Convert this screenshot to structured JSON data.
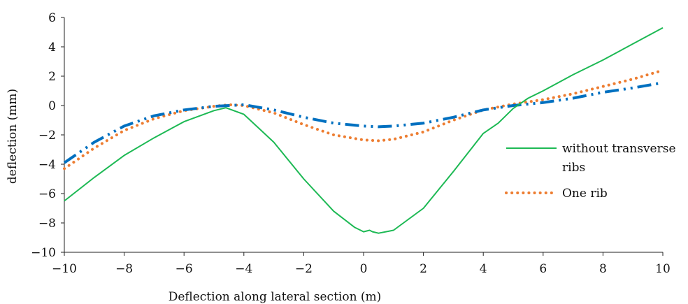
{
  "chart_data": {
    "type": "line",
    "title": "",
    "xlabel": "Deflection along lateral section (m)",
    "ylabel": "deflection (mm)",
    "xlim": [
      -10,
      10
    ],
    "ylim": [
      -10,
      6
    ],
    "xticks": [
      -10,
      -8,
      -6,
      -4,
      -2,
      0,
      2,
      4,
      6,
      8,
      10
    ],
    "yticks": [
      6,
      4,
      2,
      0,
      -2,
      -4,
      -6,
      -8,
      -10
    ],
    "xtick_labels": [
      "−10",
      "−8",
      "−6",
      "−4",
      "−2",
      "0",
      "2",
      "4",
      "6",
      "8",
      "10"
    ],
    "ytick_labels": [
      "6",
      "4",
      "2",
      "0",
      "−2",
      "−4",
      "−6",
      "−8",
      "−10"
    ],
    "grid": false,
    "legend_position": "right",
    "series": [
      {
        "name": "without transverse ribs",
        "color": "#1db954",
        "style": "solid",
        "x": [
          -10,
          -9,
          -8,
          -7,
          -6,
          -5,
          -4.6,
          -4,
          -3,
          -2,
          -1,
          -0.3,
          0,
          0.2,
          0.3,
          0.5,
          1,
          2,
          3,
          4,
          4.5,
          5,
          5.5,
          6,
          7,
          8,
          9,
          10
        ],
        "y": [
          -6.5,
          -4.9,
          -3.4,
          -2.2,
          -1.1,
          -0.35,
          -0.15,
          -0.6,
          -2.5,
          -5.0,
          -7.2,
          -8.3,
          -8.6,
          -8.5,
          -8.6,
          -8.7,
          -8.5,
          -7.0,
          -4.5,
          -1.9,
          -1.2,
          -0.2,
          0.5,
          1.0,
          2.1,
          3.1,
          4.2,
          5.3
        ]
      },
      {
        "name": "One rib",
        "color": "#ed7d31",
        "style": "dotted",
        "x": [
          -10,
          -9,
          -8,
          -7,
          -6,
          -5,
          -4.5,
          -4,
          -3,
          -2,
          -1,
          0,
          0.5,
          1,
          2,
          3,
          4,
          5,
          6,
          7,
          8,
          9,
          10
        ],
        "y": [
          -4.3,
          -2.9,
          -1.7,
          -0.9,
          -0.35,
          -0.05,
          0.05,
          0.0,
          -0.5,
          -1.3,
          -2.0,
          -2.35,
          -2.4,
          -2.3,
          -1.8,
          -1.0,
          -0.3,
          0.1,
          0.4,
          0.8,
          1.3,
          1.8,
          2.4
        ]
      },
      {
        "name": "",
        "color": "#0070c0",
        "style": "dashdot",
        "x": [
          -10,
          -9,
          -8,
          -7,
          -6,
          -5,
          -4.5,
          -4,
          -3,
          -2,
          -1,
          0,
          0.5,
          1,
          2,
          3,
          4,
          5,
          6,
          7,
          8,
          9,
          10
        ],
        "y": [
          -3.9,
          -2.5,
          -1.4,
          -0.7,
          -0.3,
          -0.05,
          0.0,
          0.05,
          -0.3,
          -0.8,
          -1.2,
          -1.4,
          -1.45,
          -1.4,
          -1.2,
          -0.8,
          -0.3,
          0.0,
          0.2,
          0.5,
          0.9,
          1.2,
          1.55
        ]
      }
    ]
  }
}
